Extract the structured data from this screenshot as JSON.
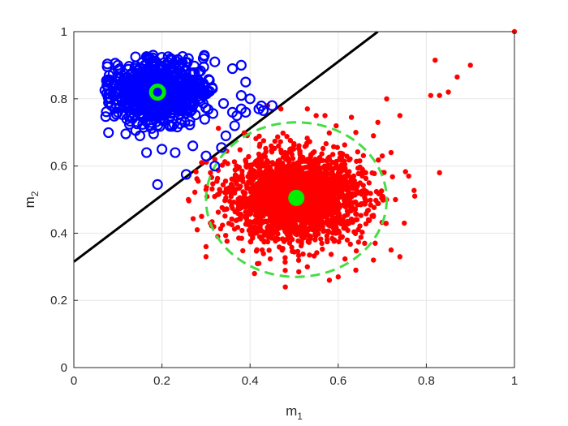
{
  "chart_data": {
    "type": "scatter",
    "title": "",
    "xlabel": "m",
    "xlabel_subscript": "1",
    "ylabel": "m",
    "ylabel_subscript": "2",
    "xlim": [
      0,
      1
    ],
    "ylim": [
      0,
      1
    ],
    "xticks": [
      0,
      0.2,
      0.4,
      0.6,
      0.8,
      1
    ],
    "yticks": [
      0,
      0.2,
      0.4,
      0.6,
      0.8,
      1
    ],
    "xtick_labels": [
      "0",
      "0.2",
      "0.4",
      "0.6",
      "0.8",
      "1"
    ],
    "ytick_labels": [
      "0",
      "0.2",
      "0.4",
      "0.6",
      "0.8",
      "1"
    ],
    "grid": true,
    "series": [
      {
        "marker": "open-circle",
        "color": "#0000ff",
        "cluster_center": [
          0.19,
          0.82
        ],
        "spread": [
          0.055,
          0.045
        ],
        "count": 700,
        "points": [
          [
            0.19,
            0.545
          ],
          [
            0.255,
            0.575
          ],
          [
            0.32,
            0.6
          ],
          [
            0.335,
            0.655
          ],
          [
            0.345,
            0.69
          ],
          [
            0.365,
            0.72
          ],
          [
            0.37,
            0.75
          ],
          [
            0.38,
            0.77
          ],
          [
            0.39,
            0.76
          ],
          [
            0.42,
            0.77
          ],
          [
            0.43,
            0.765
          ],
          [
            0.45,
            0.78
          ],
          [
            0.38,
            0.9
          ],
          [
            0.36,
            0.89
          ],
          [
            0.32,
            0.91
          ],
          [
            0.26,
            0.92
          ],
          [
            0.22,
            0.92
          ],
          [
            0.18,
            0.93
          ],
          [
            0.14,
            0.925
          ],
          [
            0.1,
            0.9
          ],
          [
            0.08,
            0.87
          ],
          [
            0.075,
            0.84
          ],
          [
            0.08,
            0.8
          ],
          [
            0.085,
            0.78
          ],
          [
            0.1,
            0.76
          ],
          [
            0.12,
            0.74
          ],
          [
            0.15,
            0.69
          ],
          [
            0.165,
            0.64
          ],
          [
            0.2,
            0.65
          ],
          [
            0.23,
            0.64
          ],
          [
            0.27,
            0.66
          ],
          [
            0.3,
            0.63
          ],
          [
            0.38,
            0.81
          ],
          [
            0.39,
            0.85
          ],
          [
            0.4,
            0.8
          ],
          [
            0.36,
            0.76
          ]
        ]
      },
      {
        "marker": "filled-dot",
        "color": "#ff0000",
        "cluster_center": [
          0.505,
          0.505
        ],
        "spread": [
          0.075,
          0.065
        ],
        "count": 2200,
        "points": [
          [
            0.44,
            0.78
          ],
          [
            0.47,
            0.77
          ],
          [
            0.53,
            0.77
          ],
          [
            0.55,
            0.75
          ],
          [
            0.57,
            0.75
          ],
          [
            0.63,
            0.745
          ],
          [
            0.64,
            0.7
          ],
          [
            0.68,
            0.69
          ],
          [
            0.69,
            0.73
          ],
          [
            0.71,
            0.8
          ],
          [
            0.74,
            0.75
          ],
          [
            0.72,
            0.64
          ],
          [
            0.7,
            0.63
          ],
          [
            0.76,
            0.57
          ],
          [
            0.73,
            0.5
          ],
          [
            0.75,
            0.43
          ],
          [
            0.72,
            0.35
          ],
          [
            0.74,
            0.33
          ],
          [
            0.68,
            0.32
          ],
          [
            0.64,
            0.29
          ],
          [
            0.6,
            0.27
          ],
          [
            0.58,
            0.26
          ],
          [
            0.53,
            0.3
          ],
          [
            0.48,
            0.24
          ],
          [
            0.41,
            0.28
          ],
          [
            0.42,
            0.31
          ],
          [
            0.3,
            0.33
          ],
          [
            0.3,
            0.36
          ],
          [
            0.28,
            0.41
          ],
          [
            0.29,
            0.45
          ],
          [
            0.26,
            0.5
          ],
          [
            0.3,
            0.53
          ],
          [
            0.31,
            0.58
          ],
          [
            0.32,
            0.62
          ],
          [
            0.29,
            0.61
          ],
          [
            0.31,
            0.43
          ],
          [
            0.67,
            0.55
          ],
          [
            0.7,
            0.58
          ],
          [
            0.68,
            0.45
          ],
          [
            0.66,
            0.37
          ],
          [
            0.83,
            0.58
          ],
          [
            0.81,
            0.81
          ],
          [
            0.82,
            0.915
          ],
          [
            0.83,
            0.81
          ],
          [
            0.85,
            0.82
          ],
          [
            0.87,
            0.865
          ],
          [
            0.9,
            0.9
          ],
          [
            1.0,
            1.0
          ]
        ]
      }
    ],
    "centroids": [
      {
        "x": 0.19,
        "y": 0.82,
        "marker": "ring",
        "color": "#00ee00"
      },
      {
        "x": 0.505,
        "y": 0.505,
        "marker": "filled-dot",
        "color": "#00ee00"
      }
    ],
    "decision_line": {
      "x": [
        0,
        0.69
      ],
      "y": [
        0.315,
        1.0
      ],
      "color": "#000000"
    },
    "ellipse": {
      "cx": 0.505,
      "cy": 0.5,
      "rx": 0.205,
      "ry": 0.23,
      "color": "#44dd44",
      "style": "dashed"
    }
  }
}
